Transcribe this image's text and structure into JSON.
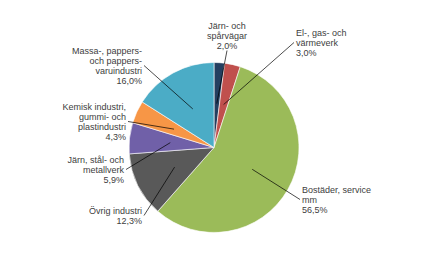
{
  "chart_data": {
    "type": "pie",
    "categories": [
      "Järn- och\nspårvägar",
      "El-, gas- och\nvärmeverk",
      "Bostäder, service\nmm",
      "Övrig industri",
      "Järn, stål- och\nmetallverk",
      "Kemisk industri,\ngummi- och\nplastindustri",
      "Massa-, pappers-\noch pappers-\nvaruindustri"
    ],
    "values": [
      2.0,
      3.0,
      56.5,
      12.3,
      5.9,
      4.3,
      16.0
    ],
    "value_labels": [
      "2,0%",
      "3,0%",
      "56,5%",
      "12,3%",
      "5,9%",
      "4,3%",
      "16,0%"
    ],
    "colors": [
      "#243f60",
      "#c0504d",
      "#9bbb59",
      "#595959",
      "#7060a8",
      "#f79646",
      "#4bacc6"
    ]
  }
}
